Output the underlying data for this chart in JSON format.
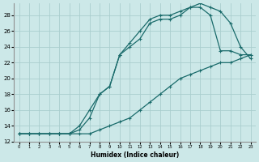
{
  "xlabel": "Humidex (Indice chaleur)",
  "bg_color": "#cce8e8",
  "grid_color": "#aacece",
  "line_color": "#1a6b6b",
  "xlim_min": -0.5,
  "xlim_max": 23.5,
  "ylim_min": 12,
  "ylim_max": 29.5,
  "xticks": [
    0,
    1,
    2,
    3,
    4,
    5,
    6,
    7,
    8,
    9,
    10,
    11,
    12,
    13,
    14,
    15,
    16,
    17,
    18,
    19,
    20,
    21,
    22,
    23
  ],
  "yticks": [
    12,
    14,
    16,
    18,
    20,
    22,
    24,
    26,
    28
  ],
  "line1_x": [
    0,
    1,
    2,
    3,
    4,
    5,
    6,
    7,
    8,
    9,
    10,
    11,
    12,
    13,
    14,
    15,
    16,
    17,
    18,
    19,
    20,
    21,
    22,
    23
  ],
  "line1_y": [
    13,
    13,
    13,
    13,
    13,
    13,
    13.5,
    15,
    18,
    19,
    23,
    24,
    25,
    27,
    27.5,
    27.5,
    28,
    29,
    29,
    28,
    23.5,
    23.5,
    23,
    23
  ],
  "line2_x": [
    0,
    1,
    2,
    3,
    4,
    5,
    6,
    7,
    8,
    9,
    10,
    11,
    12,
    13,
    14,
    15,
    16,
    17,
    18,
    19,
    20,
    21,
    22,
    23
  ],
  "line2_y": [
    13,
    13,
    13,
    13,
    13,
    13,
    14,
    16,
    18,
    19,
    23,
    24.5,
    26,
    27.5,
    28,
    28,
    28.5,
    29,
    29.5,
    29,
    28.5,
    27,
    24,
    22.5
  ],
  "line3_x": [
    0,
    1,
    2,
    3,
    4,
    5,
    6,
    7,
    8,
    9,
    10,
    11,
    12,
    13,
    14,
    15,
    16,
    17,
    18,
    19,
    20,
    21,
    22,
    23
  ],
  "line3_y": [
    13,
    13,
    13,
    13,
    13,
    13,
    13,
    13,
    13.5,
    14,
    14.5,
    15,
    16,
    17,
    18,
    19,
    20,
    20.5,
    21,
    21.5,
    22,
    22,
    22.5,
    23
  ]
}
